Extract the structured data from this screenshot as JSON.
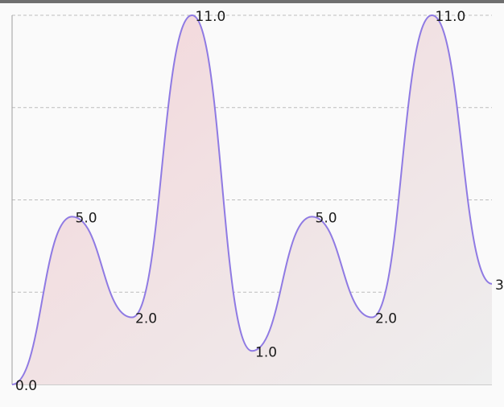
{
  "colors": {
    "background": "#fafafa",
    "line": "#8f7ae3",
    "fill_left": "#f4d6da",
    "fill_right": "#eeeeee",
    "grid": "#bdbdbd",
    "axis": "#9e9e9e",
    "label": "#1a1a1a"
  },
  "chart_data": {
    "type": "area",
    "curve": "smooth",
    "x": [
      0,
      1,
      2,
      3,
      4,
      5,
      6,
      7,
      8
    ],
    "values": [
      0,
      5,
      2,
      11,
      1,
      5,
      2,
      11,
      3
    ],
    "data_labels": [
      "0.0",
      "5.0",
      "2.0",
      "11.0",
      "1.0",
      "5.0",
      "2.0",
      "11.0",
      "3"
    ],
    "ylim": [
      0,
      11
    ],
    "gridlines_y": [
      2.75,
      5.5,
      8.25,
      11
    ],
    "grid": "horizontal dashed",
    "legend": "none"
  }
}
